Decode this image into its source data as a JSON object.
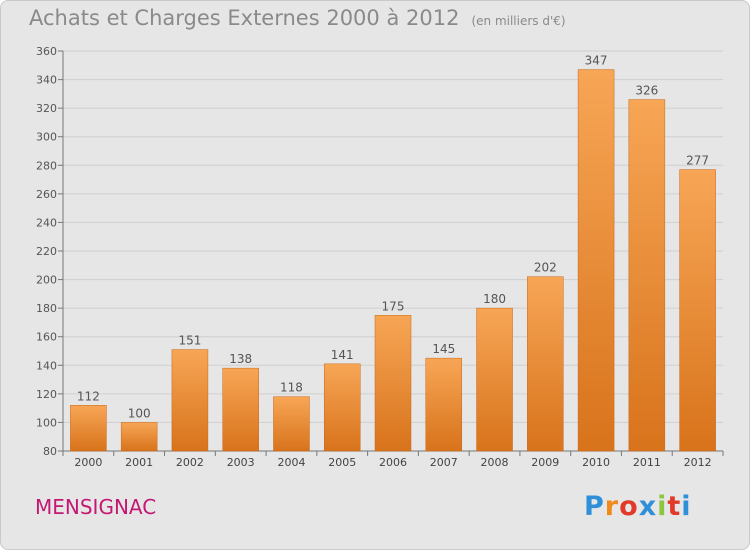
{
  "header": {
    "title": "Achats et Charges Externes 2000 à 2012",
    "subtitle": "(en milliers d'€)"
  },
  "footer": {
    "location": "MENSIGNAC",
    "brand": "Proxiti"
  },
  "colors": {
    "bar_light": "#f7a656",
    "bar_dark": "#d8731b",
    "background": "#e6e6e6",
    "location_text": "#c41873"
  },
  "chart_data": {
    "type": "bar",
    "title": "Achats et Charges Externes 2000 à 2012",
    "subtitle": "(en milliers d'€)",
    "categories": [
      "2000",
      "2001",
      "2002",
      "2003",
      "2004",
      "2005",
      "2006",
      "2007",
      "2008",
      "2009",
      "2010",
      "2011",
      "2012"
    ],
    "values": [
      112,
      100,
      151,
      138,
      118,
      141,
      175,
      145,
      180,
      202,
      347,
      326,
      277
    ],
    "ylim": [
      80,
      360
    ],
    "yticks": [
      80,
      100,
      120,
      140,
      160,
      180,
      200,
      220,
      240,
      260,
      280,
      300,
      320,
      340,
      360
    ],
    "grid": true,
    "data_labels": true
  }
}
